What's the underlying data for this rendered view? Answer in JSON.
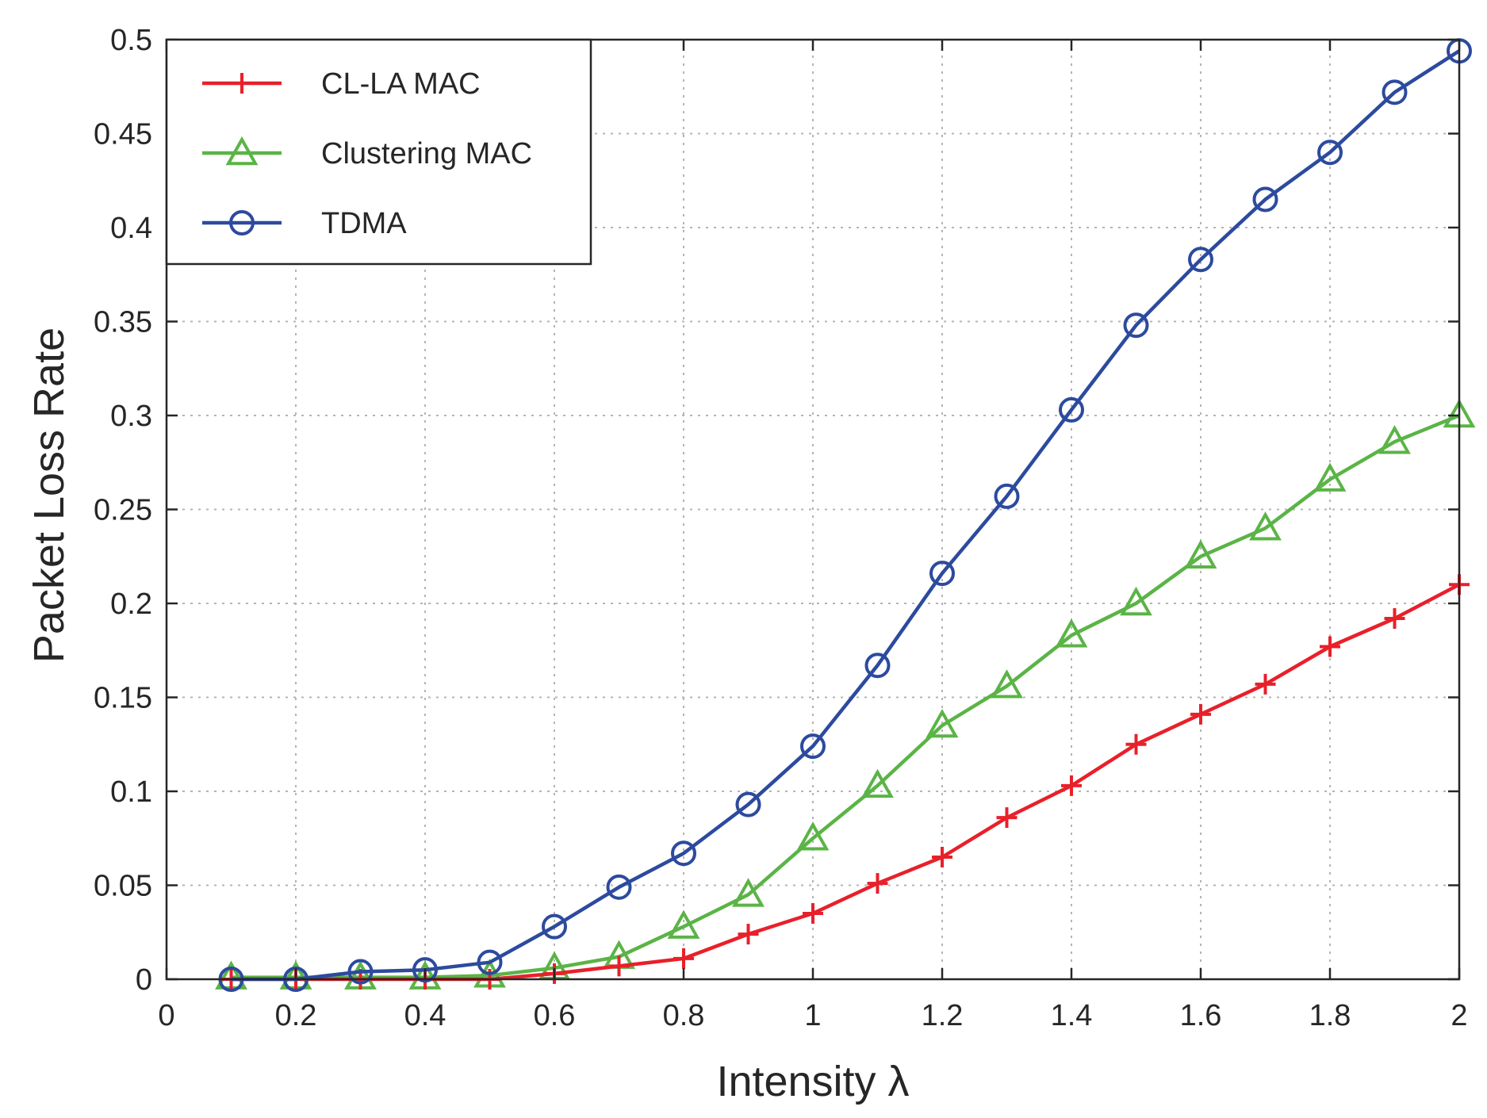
{
  "chart_data": {
    "type": "line",
    "title": "",
    "xlabel": "Intensity λ",
    "ylabel": "Packet Loss Rate",
    "xlim": [
      0,
      2
    ],
    "ylim": [
      0,
      0.5
    ],
    "xticks": [
      0,
      0.2,
      0.4,
      0.6,
      0.8,
      1,
      1.2,
      1.4,
      1.6,
      1.8,
      2
    ],
    "xtick_labels": [
      "0",
      "0.2",
      "0.4",
      "0.6",
      "0.8",
      "1",
      "1.2",
      "1.4",
      "1.6",
      "1.8",
      "2"
    ],
    "yticks": [
      0,
      0.05,
      0.1,
      0.15,
      0.2,
      0.25,
      0.3,
      0.35,
      0.4,
      0.45,
      0.5
    ],
    "ytick_labels": [
      "0",
      "0.05",
      "0.1",
      "0.15",
      "0.2",
      "0.25",
      "0.3",
      "0.35",
      "0.4",
      "0.45",
      "0.5"
    ],
    "grid": true,
    "legend_position": "top-left",
    "x": [
      0.1,
      0.2,
      0.3,
      0.4,
      0.5,
      0.6,
      0.7,
      0.8,
      0.9,
      1.0,
      1.1,
      1.2,
      1.3,
      1.4,
      1.5,
      1.6,
      1.7,
      1.8,
      1.9,
      2.0
    ],
    "series": [
      {
        "name": "CL-LA MAC",
        "color": "#e8202a",
        "marker": "plus",
        "values": [
          0,
          0,
          0,
          0,
          0,
          0.003,
          0.007,
          0.011,
          0.024,
          0.035,
          0.051,
          0.065,
          0.086,
          0.103,
          0.125,
          0.141,
          0.157,
          0.177,
          0.192,
          0.21
        ]
      },
      {
        "name": "Clustering MAC",
        "color": "#5ab446",
        "marker": "triangle",
        "values": [
          0.001,
          0.001,
          0.001,
          0.001,
          0.002,
          0.006,
          0.012,
          0.028,
          0.045,
          0.075,
          0.103,
          0.135,
          0.156,
          0.183,
          0.2,
          0.225,
          0.24,
          0.266,
          0.286,
          0.3
        ]
      },
      {
        "name": "TDMA",
        "color": "#2c4a9e",
        "marker": "circle",
        "values": [
          0,
          0,
          0.004,
          0.005,
          0.009,
          0.028,
          0.049,
          0.067,
          0.093,
          0.124,
          0.167,
          0.216,
          0.257,
          0.303,
          0.348,
          0.383,
          0.415,
          0.44,
          0.472,
          0.494
        ]
      }
    ]
  }
}
